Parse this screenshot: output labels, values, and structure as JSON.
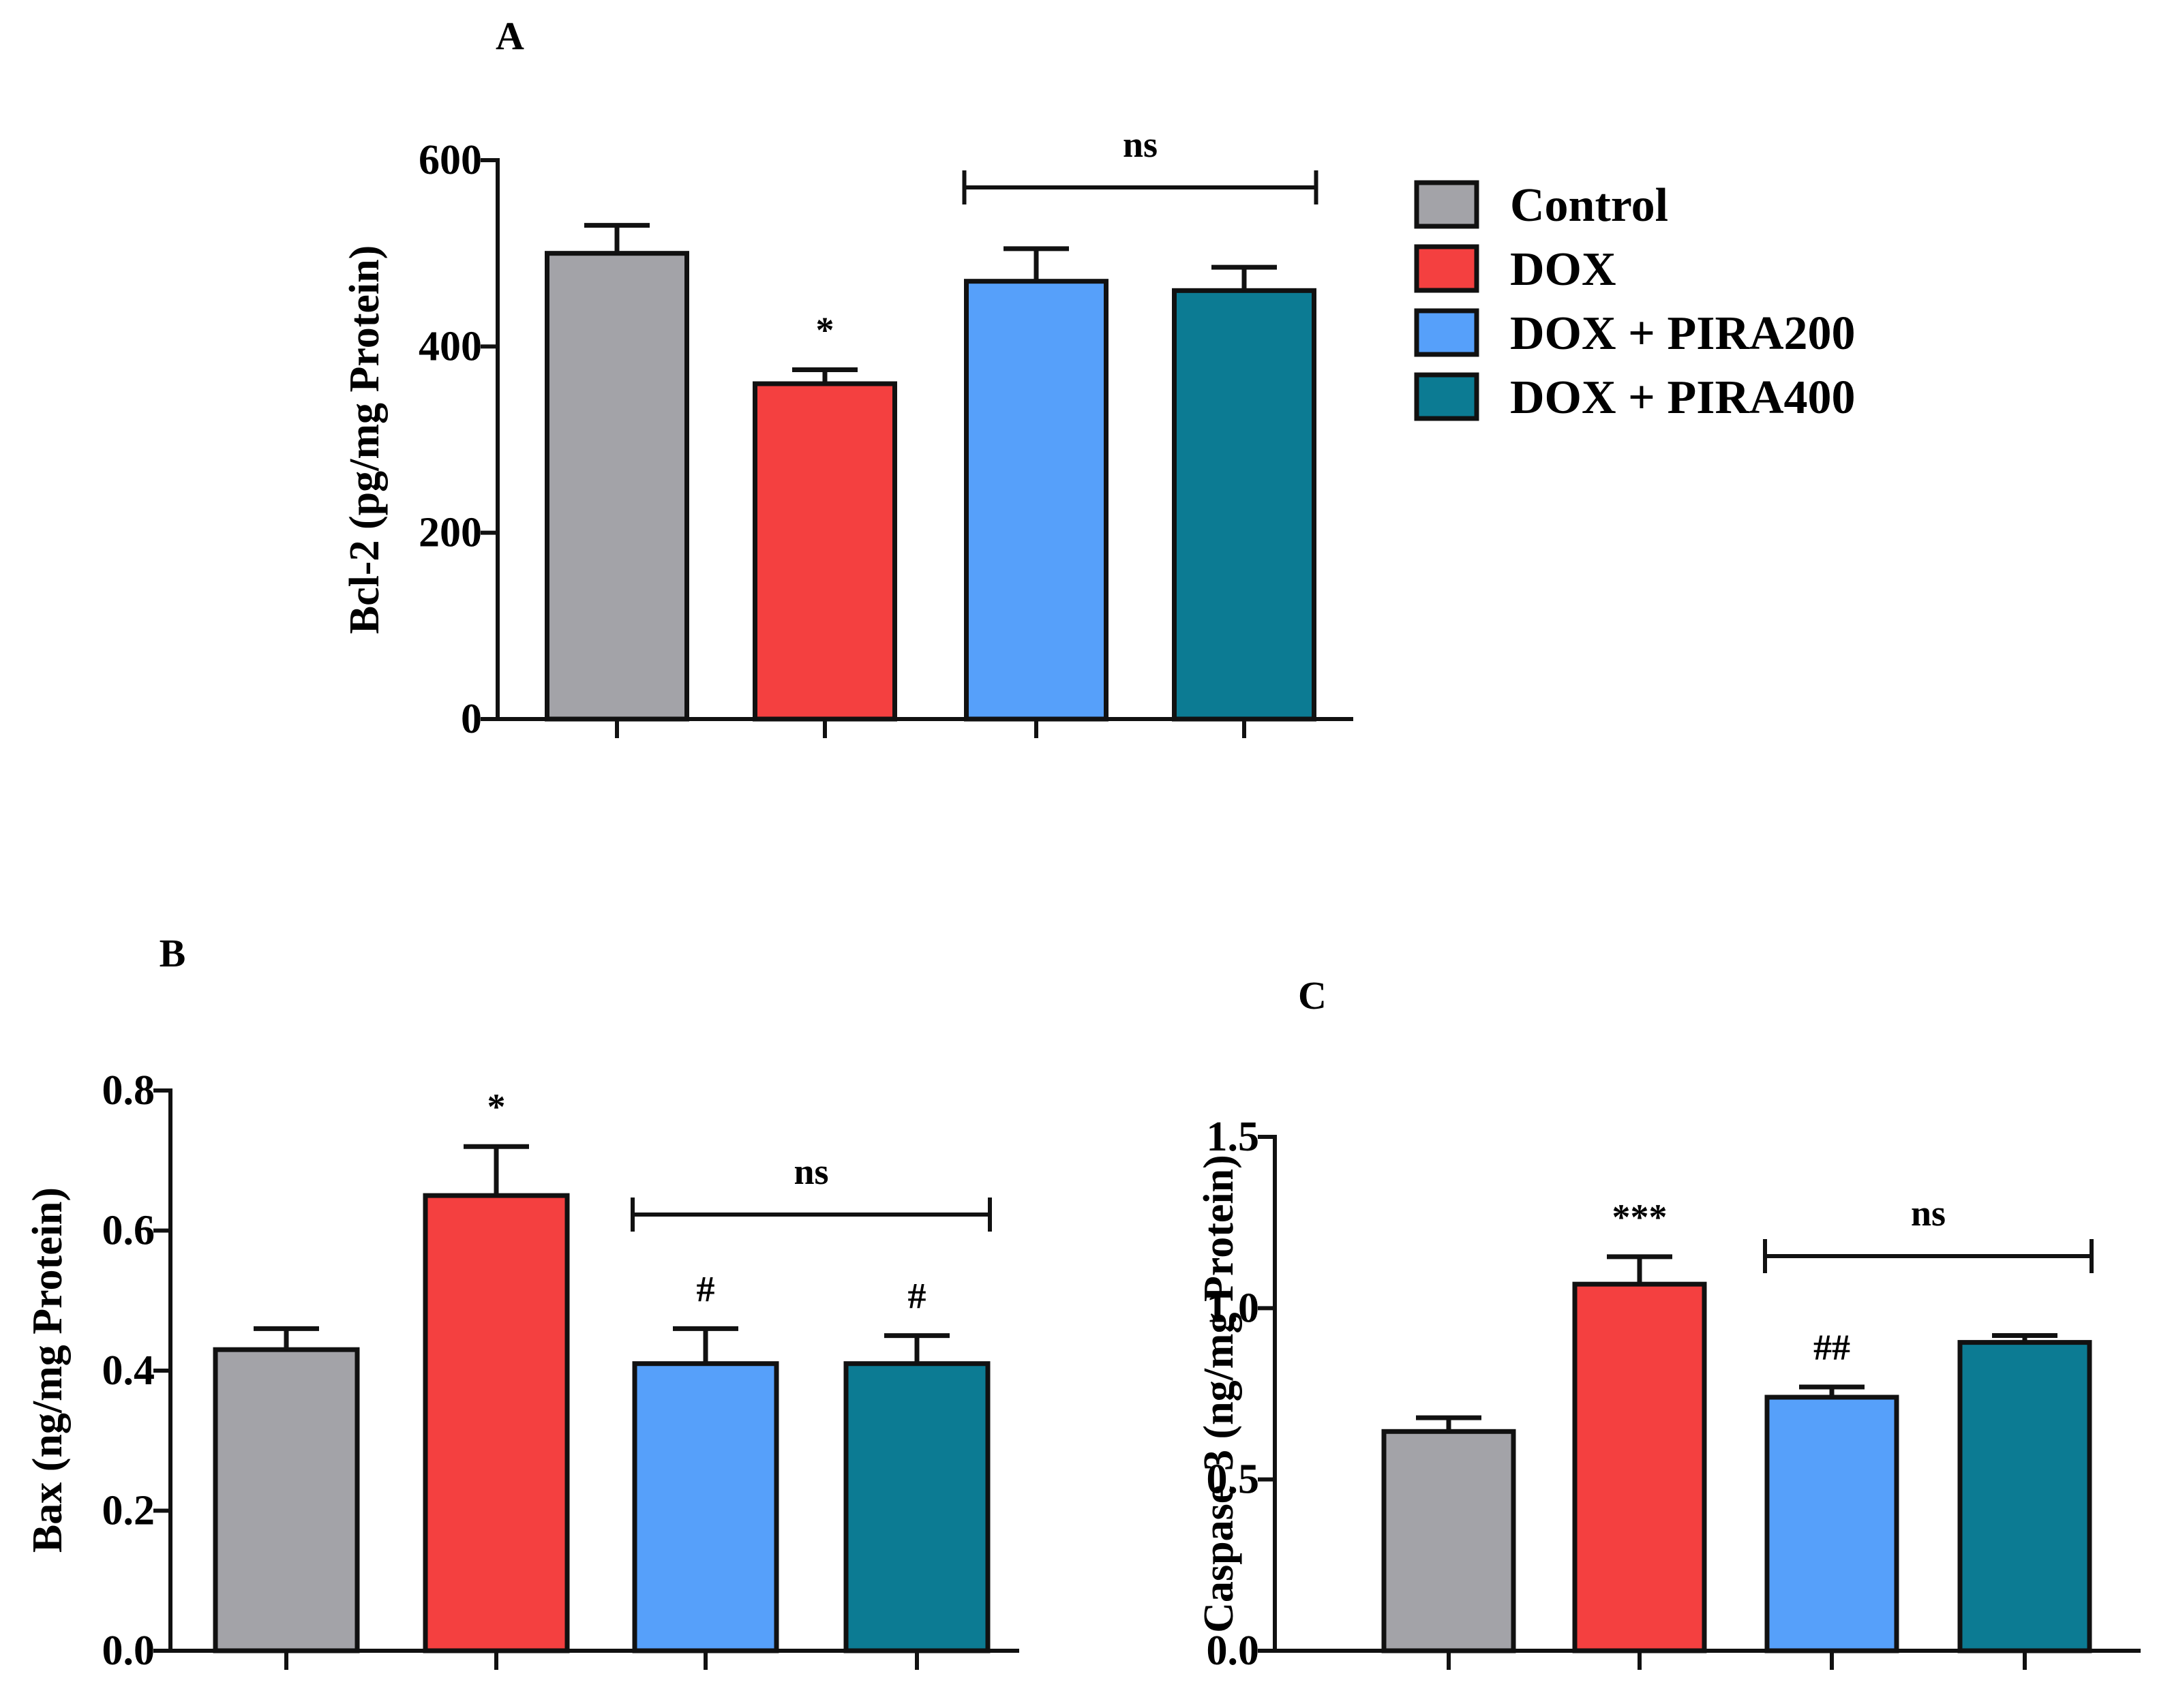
{
  "figure": {
    "legend": [
      {
        "label": "Control",
        "color": "#a3a3a8"
      },
      {
        "label": "DOX",
        "color": "#f44040"
      },
      {
        "label": "DOX + PIRA200",
        "color": "#56a0fa"
      },
      {
        "label": "DOX + PIRA400",
        "color": "#0c7b93"
      }
    ]
  },
  "chart_data": [
    {
      "panel": "A",
      "type": "bar",
      "categories": [
        "Control",
        "DOX",
        "DOX + PIRA200",
        "DOX + PIRA400"
      ],
      "values": [
        500,
        360,
        470,
        460
      ],
      "errors": [
        30,
        15,
        35,
        25
      ],
      "ylabel": "Bcl-2 (pg/mg Protein)",
      "ylim": [
        0,
        600
      ],
      "yticks": [
        0,
        200,
        400,
        600
      ],
      "yticklabels": [
        "0",
        "200",
        "400",
        "600"
      ],
      "bar_marks": [
        "",
        "*",
        "",
        ""
      ],
      "bracket": {
        "from": 2,
        "to": 3,
        "label": "ns"
      }
    },
    {
      "panel": "B",
      "type": "bar",
      "categories": [
        "Control",
        "DOX",
        "DOX + PIRA200",
        "DOX + PIRA400"
      ],
      "values": [
        0.43,
        0.65,
        0.41,
        0.41
      ],
      "errors": [
        0.03,
        0.07,
        0.05,
        0.04
      ],
      "ylabel": "Bax (ng/mg Protein)",
      "ylim": [
        0,
        0.8
      ],
      "yticks": [
        0,
        0.2,
        0.4,
        0.6,
        0.8
      ],
      "yticklabels": [
        "0.0",
        "0.2",
        "0.4",
        "0.6",
        "0.8"
      ],
      "bar_marks": [
        "",
        "*",
        "#",
        "#"
      ],
      "bracket": {
        "from": 2,
        "to": 3,
        "label": "ns"
      }
    },
    {
      "panel": "C",
      "type": "bar",
      "categories": [
        "Control",
        "DOX",
        "DOX + PIRA200",
        "DOX + PIRA400"
      ],
      "values": [
        0.64,
        1.07,
        0.74,
        0.9
      ],
      "errors": [
        0.04,
        0.08,
        0.03,
        0.02
      ],
      "ylabel": "Caspase-3 (ng/mg Protein)",
      "ylim": [
        0,
        1.5
      ],
      "yticks": [
        0,
        0.5,
        1.0,
        1.5
      ],
      "yticklabels": [
        "0.0",
        "0.5",
        "1.0",
        "1.5"
      ],
      "bar_marks": [
        "",
        "***",
        "##",
        ""
      ],
      "bracket": {
        "from": 2,
        "to": 3,
        "label": "ns"
      }
    }
  ]
}
